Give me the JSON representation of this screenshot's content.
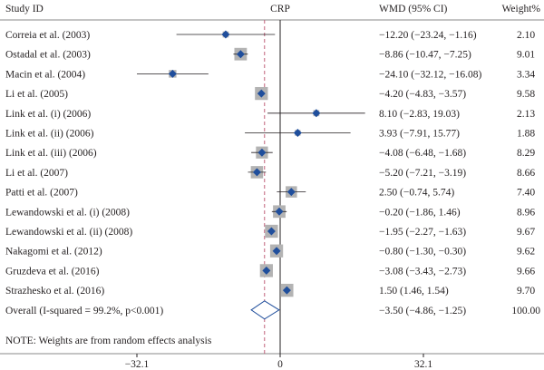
{
  "chart_data": {
    "type": "forest",
    "headers": {
      "study": "Study ID",
      "plot": "CRP",
      "effect": "WMD (95% CI)",
      "weight": "Weight%"
    },
    "xlim": [
      -32.1,
      32.1
    ],
    "ticks": [
      {
        "value": -32.1,
        "label": "-32.1"
      },
      {
        "value": 0,
        "label": "0"
      },
      {
        "value": 32.1,
        "label": "32.1"
      }
    ],
    "studies": [
      {
        "name": "Correia et al. (2003)",
        "est": -12.2,
        "lo": -23.24,
        "hi": -1.16,
        "ci_text": "−12.20 (−23.24, −1.16)",
        "weight": "2.10"
      },
      {
        "name": "Ostadal et al. (2003)",
        "est": -8.86,
        "lo": -10.47,
        "hi": -7.25,
        "ci_text": "−8.86 (−10.47, −7.25)",
        "weight": "9.01"
      },
      {
        "name": "Macin et al. (2004)",
        "est": -24.1,
        "lo": -32.12,
        "hi": -16.08,
        "ci_text": "−24.10 (−32.12, −16.08)",
        "weight": "3.34"
      },
      {
        "name": "Li et al. (2005)",
        "est": -4.2,
        "lo": -4.83,
        "hi": -3.57,
        "ci_text": "−4.20 (−4.83, −3.57)",
        "weight": "9.58"
      },
      {
        "name": "Link et al. (i) (2006)",
        "est": 8.1,
        "lo": -2.83,
        "hi": 19.03,
        "ci_text": "8.10 (−2.83, 19.03)",
        "weight": "2.13"
      },
      {
        "name": "Link et al. (ii) (2006)",
        "est": 3.93,
        "lo": -7.91,
        "hi": 15.77,
        "ci_text": "3.93 (−7.91, 15.77)",
        "weight": "1.88"
      },
      {
        "name": "Link et al. (iii) (2006)",
        "est": -4.08,
        "lo": -6.48,
        "hi": -1.68,
        "ci_text": "−4.08 (−6.48, −1.68)",
        "weight": "8.29"
      },
      {
        "name": "Li et al. (2007)",
        "est": -5.2,
        "lo": -7.21,
        "hi": -3.19,
        "ci_text": "−5.20 (−7.21, −3.19)",
        "weight": "8.66"
      },
      {
        "name": "Patti et al. (2007)",
        "est": 2.5,
        "lo": -0.74,
        "hi": 5.74,
        "ci_text": "2.50 (−0.74, 5.74)",
        "weight": "7.40"
      },
      {
        "name": "Lewandowski et al. (i) (2008)",
        "est": -0.2,
        "lo": -1.86,
        "hi": 1.46,
        "ci_text": "−0.20 (−1.86, 1.46)",
        "weight": "8.96"
      },
      {
        "name": "Lewandowski et al. (ii) (2008)",
        "est": -1.95,
        "lo": -2.27,
        "hi": -1.63,
        "ci_text": "−1.95 (−2.27, −1.63)",
        "weight": "9.67"
      },
      {
        "name": "Nakagomi et al. (2012)",
        "est": -0.8,
        "lo": -1.3,
        "hi": -0.3,
        "ci_text": "−0.80 (−1.30, −0.30)",
        "weight": "9.62"
      },
      {
        "name": "Gruzdeva et al. (2016)",
        "est": -3.08,
        "lo": -3.43,
        "hi": -2.73,
        "ci_text": "−3.08 (−3.43, −2.73)",
        "weight": "9.66"
      },
      {
        "name": "Strazhesko et al. (2016)",
        "est": 1.5,
        "lo": 1.46,
        "hi": 1.54,
        "ci_text": "1.50 (1.46, 1.54)",
        "weight": "9.70"
      }
    ],
    "overall": {
      "name": "Overall (I-squared = 99.2%, p<0.001)",
      "est": -3.5,
      "lo": -4.86,
      "hi": -1.25,
      "ci_text": "−3.50 (−4.86, −1.25)",
      "weight": "100.00"
    },
    "note": "NOTE: Weights are from random effects analysis",
    "colors": {
      "marker": "#1f4e9c",
      "box": "#b3b3b3",
      "overall_line": "#c0607a",
      "axis": "#231f20"
    }
  }
}
